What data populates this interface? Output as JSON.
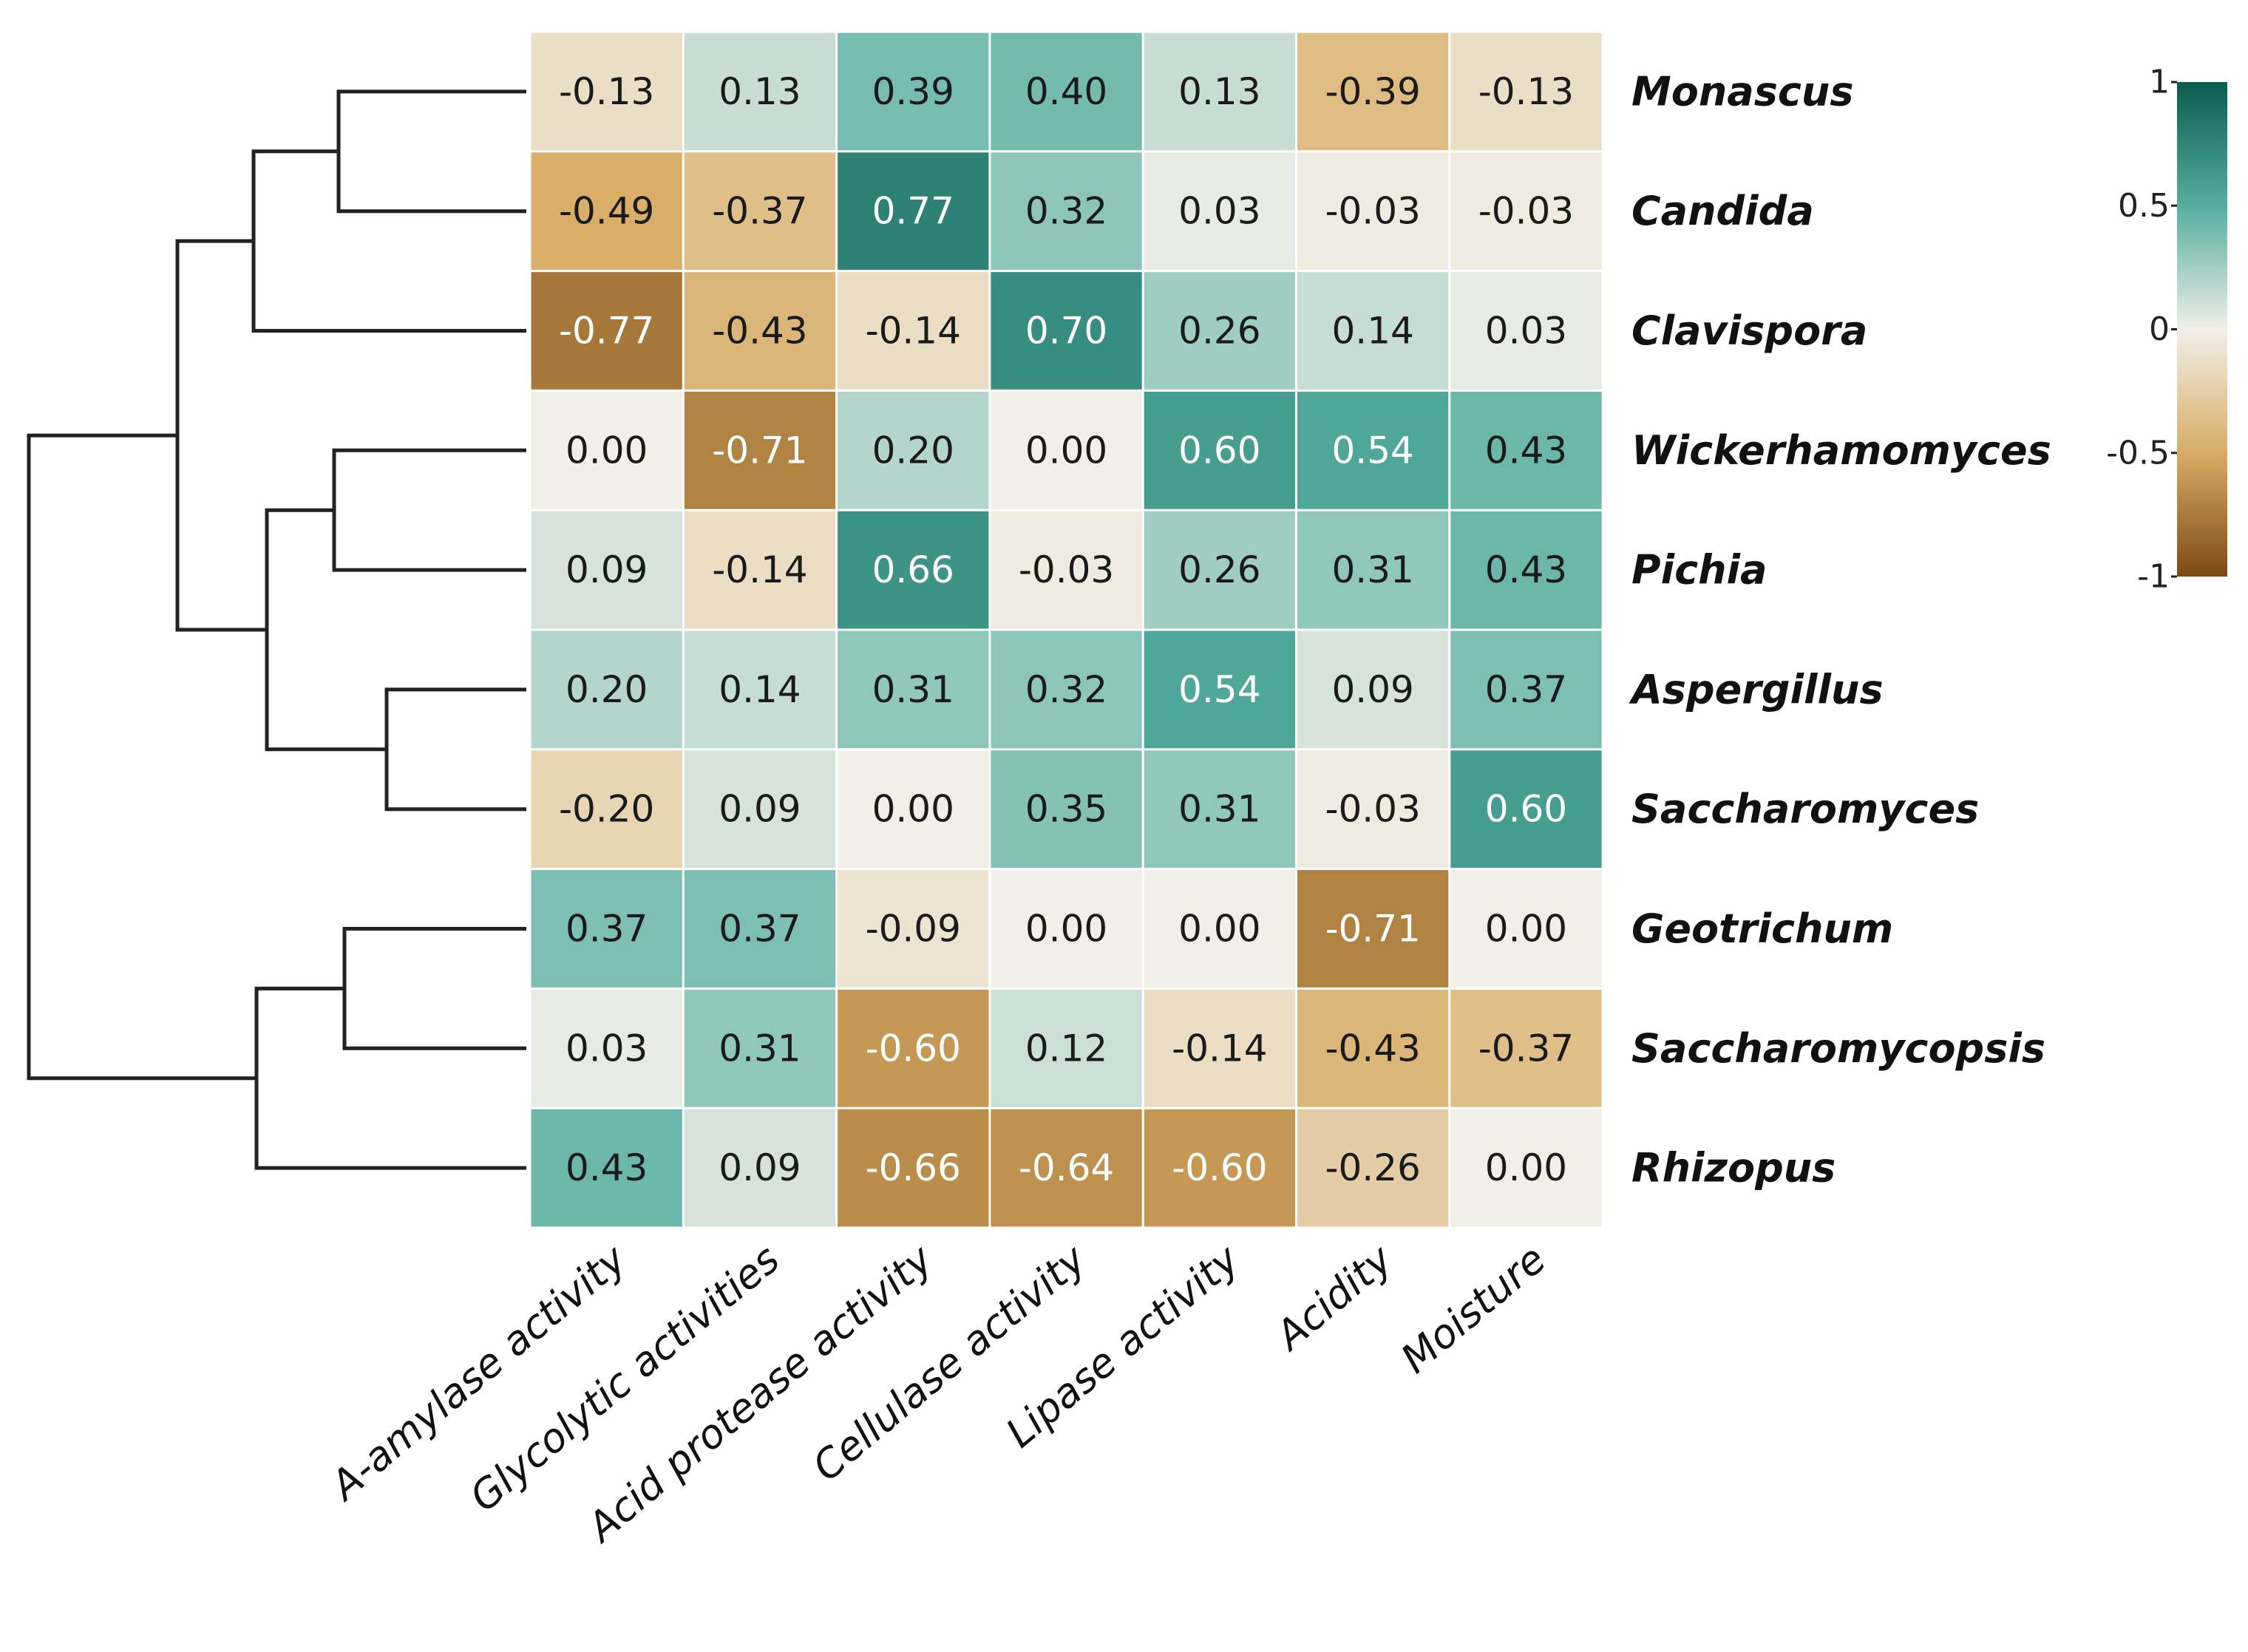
{
  "chart_data": {
    "type": "heatmap",
    "title": "",
    "rows": [
      "Monascus",
      "Candida",
      "Clavispora",
      "Wickerhamomyces",
      "Pichia",
      "Aspergillus",
      "Saccharomyces",
      "Geotrichum",
      "Saccharomycopsis",
      "Rhizopus"
    ],
    "columns": [
      "A-amylase activity",
      "Glycolytic activities",
      "Acid protease activity",
      "Cellulase activity",
      "Lipase activity",
      "Acidity",
      "Moisture"
    ],
    "values": [
      [
        -0.13,
        0.13,
        0.39,
        0.4,
        0.13,
        -0.39,
        -0.13
      ],
      [
        -0.49,
        -0.37,
        0.77,
        0.32,
        0.03,
        -0.03,
        -0.03
      ],
      [
        -0.77,
        -0.43,
        -0.14,
        0.7,
        0.26,
        0.14,
        0.03
      ],
      [
        0.0,
        -0.71,
        0.2,
        0.0,
        0.6,
        0.54,
        0.43
      ],
      [
        0.09,
        -0.14,
        0.66,
        -0.03,
        0.26,
        0.31,
        0.43
      ],
      [
        0.2,
        0.14,
        0.31,
        0.32,
        0.54,
        0.09,
        0.37
      ],
      [
        -0.2,
        0.09,
        0.0,
        0.35,
        0.31,
        -0.03,
        0.6
      ],
      [
        0.37,
        0.37,
        -0.09,
        0.0,
        0.0,
        -0.71,
        0.0
      ],
      [
        0.03,
        0.31,
        -0.6,
        0.12,
        -0.14,
        -0.43,
        -0.37
      ],
      [
        0.43,
        0.09,
        -0.66,
        -0.64,
        -0.6,
        -0.26,
        0.0
      ]
    ],
    "value_labels": [
      [
        "-0.13",
        "0.13",
        "0.39",
        "0.40",
        "0.13",
        "-0.39",
        "-0.13"
      ],
      [
        "-0.49",
        "-0.37",
        "0.77",
        "0.32",
        "0.03",
        "-0.03",
        "-0.03"
      ],
      [
        "-0.77",
        "-0.43",
        "-0.14",
        "0.70",
        "0.26",
        "0.14",
        "0.03"
      ],
      [
        "0.00",
        "-0.71",
        "0.20",
        "0.00",
        "0.60",
        "0.54",
        "0.43"
      ],
      [
        "0.09",
        "-0.14",
        "0.66",
        "-0.03",
        "0.26",
        "0.31",
        "0.43"
      ],
      [
        "0.20",
        "0.14",
        "0.31",
        "0.32",
        "0.54",
        "0.09",
        "0.37"
      ],
      [
        "-0.20",
        "0.09",
        "0.00",
        "0.35",
        "0.31",
        "-0.03",
        "0.60"
      ],
      [
        "0.37",
        "0.37",
        "-0.09",
        "0.00",
        "0.00",
        "-0.71",
        "0.00"
      ],
      [
        "0.03",
        "0.31",
        "-0.60",
        "0.12",
        "-0.14",
        "-0.43",
        "-0.37"
      ],
      [
        "0.43",
        "0.09",
        "-0.66",
        "-0.64",
        "-0.60",
        "-0.26",
        "0.00"
      ]
    ],
    "colorbar": {
      "range": [
        -1,
        1
      ],
      "ticks": [
        1,
        0.5,
        0,
        -0.5,
        -1
      ],
      "tick_labels": [
        "1",
        "0.5",
        "0",
        "-0.5",
        "-1"
      ],
      "stops": [
        {
          "value": -1,
          "color": "#7b4a12"
        },
        {
          "value": -0.5,
          "color": "#d8ad66"
        },
        {
          "value": 0,
          "color": "#f1efe8"
        },
        {
          "value": 0.5,
          "color": "#55aea0"
        },
        {
          "value": 1,
          "color": "#0a5c50"
        }
      ]
    },
    "row_dendrogram": "((Monascus,Candida),Clavispora),((Wickerhamomyces,Pichia),(Aspergillus,Saccharomyces)),((Geotrichum,Saccharomycopsis),Rhizopus)"
  }
}
